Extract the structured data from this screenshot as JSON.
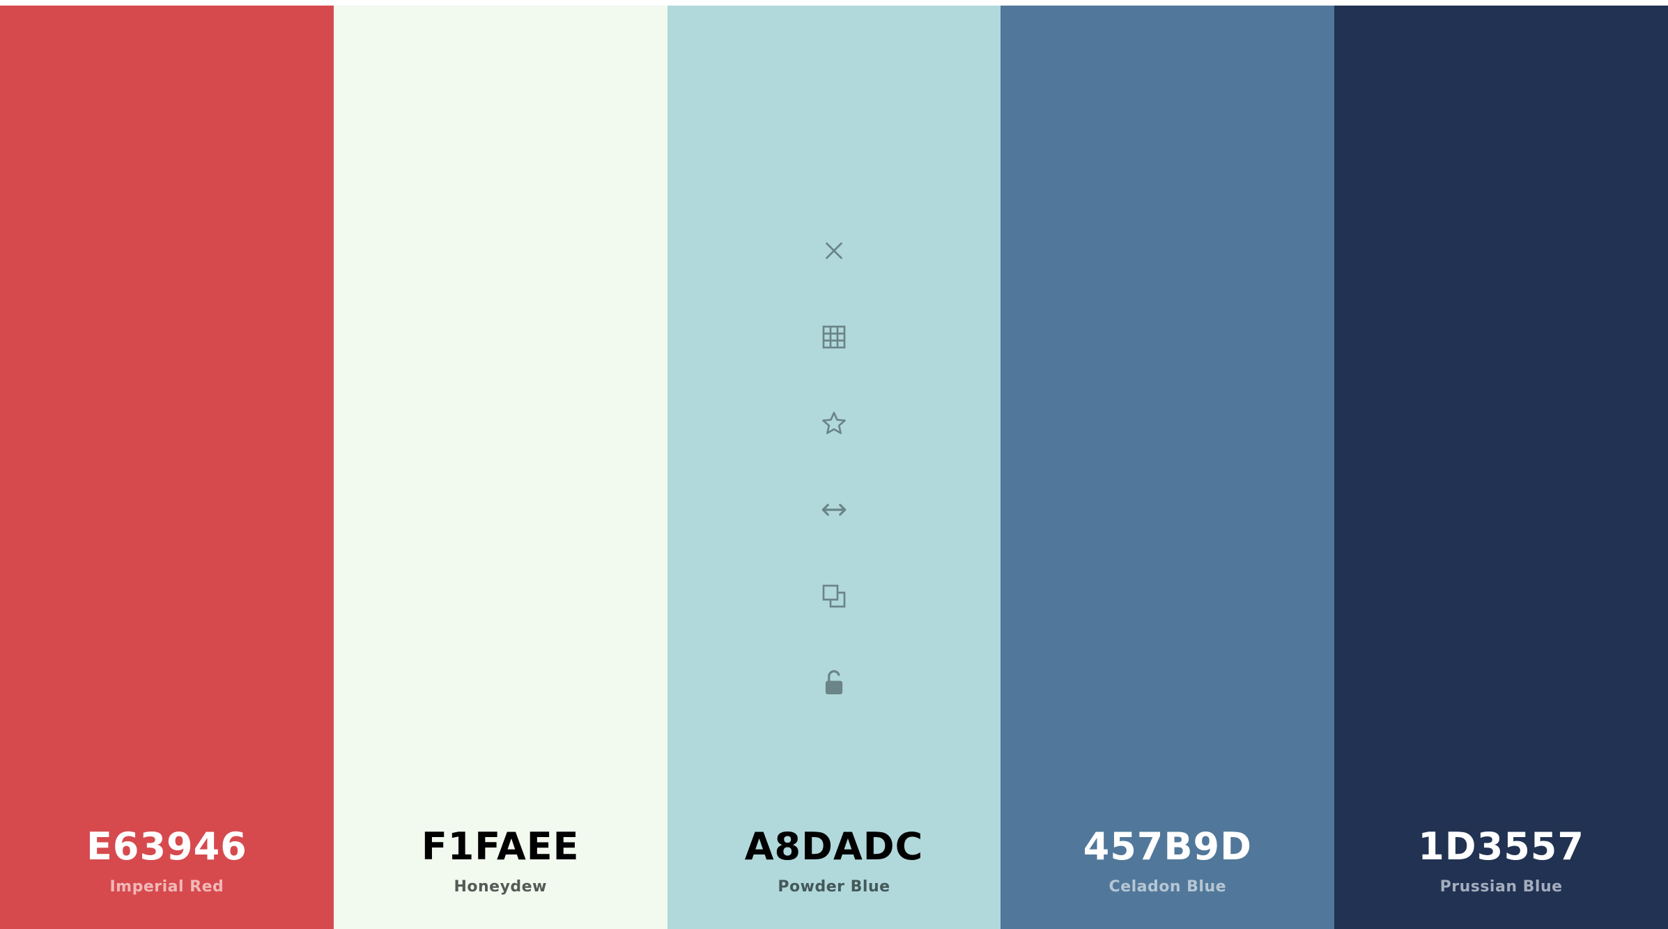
{
  "palette": {
    "swatches": [
      {
        "hex": "E63946",
        "name": "Imperial Red",
        "bg": "#d64a4e",
        "hex_color": "#ffffff",
        "name_color": "#f2b8b8"
      },
      {
        "hex": "F1FAEE",
        "name": "Honeydew",
        "bg": "#f2f9ef",
        "hex_color": "#000000",
        "name_color": "#555a55"
      },
      {
        "hex": "A8DADC",
        "name": "Powder Blue",
        "bg": "#b1d9dc",
        "hex_color": "#000000",
        "name_color": "#44585a"
      },
      {
        "hex": "457B9D",
        "name": "Celadon Blue",
        "bg": "#51789a",
        "hex_color": "#ffffff",
        "name_color": "#b6c6d4"
      },
      {
        "hex": "1D3557",
        "name": "Prussian Blue",
        "bg": "#213252",
        "hex_color": "#ffffff",
        "name_color": "#a4adbd"
      }
    ]
  },
  "toolbar": {
    "swatch_index": 2,
    "icon_color": "#6a8487",
    "icons": [
      "close-icon",
      "grid-icon",
      "star-icon",
      "drag-arrows-icon",
      "copy-icon",
      "unlock-icon"
    ]
  }
}
